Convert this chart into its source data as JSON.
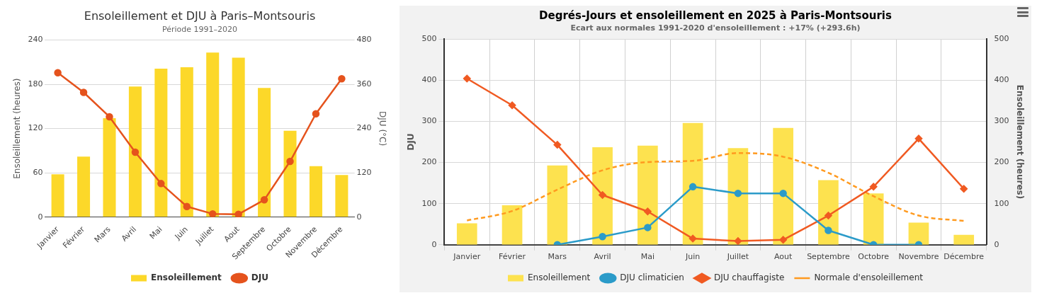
{
  "chart_data": [
    {
      "type": "bar",
      "title": "Ensoleillement et DJU à Paris–Montsouris",
      "subtitle": "Période 1991–2020",
      "ylabel": "Ensoleillement (heures)",
      "y2label": "DJU (°C)",
      "categories": [
        "Janvier",
        "Février",
        "Mars",
        "Avril",
        "Mai",
        "Juin",
        "Juillet",
        "Aout",
        "Septembre",
        "Octobre",
        "Novembre",
        "Décembre"
      ],
      "series": [
        {
          "name": "Ensoleillement",
          "color": "#fcd829",
          "values": [
            58,
            82,
            134,
            177,
            201,
            203,
            223,
            216,
            175,
            117,
            69,
            57
          ]
        },
        {
          "name": "DJU",
          "type": "line",
          "axis": "y2",
          "color": "#e5531d",
          "values": [
            391,
            338,
            272,
            176,
            91,
            29,
            9,
            8,
            47,
            151,
            280,
            375
          ]
        }
      ],
      "ylim": [
        0,
        240
      ],
      "yticks": [
        0,
        60,
        120,
        180,
        240
      ],
      "y2lim": [
        0,
        480
      ],
      "y2ticks": [
        0,
        120,
        240,
        360,
        480
      ],
      "grid": "y",
      "legend": "bottom",
      "marker": "circle"
    },
    {
      "type": "bar",
      "title": "Degrés-Jours et ensoleillement en 2025 à Paris-Montsouris",
      "subtitle": "Ecart aux normales 1991-2020 d'ensoleillement : +17% (+293.6h)",
      "ylabel": "DJU",
      "y2label": "Ensoleillement (heures)",
      "categories": [
        "Janvier",
        "Février",
        "Mars",
        "Avril",
        "Mai",
        "Juin",
        "Juillet",
        "Aout",
        "Septembre",
        "Octobre",
        "Novembre",
        "Décembre"
      ],
      "series": [
        {
          "name": "Ensoleillement",
          "axis": "y2",
          "color": "#fde24f",
          "values": [
            52,
            96,
            193,
            237,
            241,
            296,
            235,
            284,
            157,
            125,
            54,
            24
          ]
        },
        {
          "name": "DJU climaticien",
          "type": "line",
          "color": "#2b9bc9",
          "marker": "circle",
          "values": [
            null,
            null,
            0,
            20,
            42,
            141,
            125,
            125,
            35,
            0,
            0,
            null
          ]
        },
        {
          "name": "DJU chauffagiste",
          "type": "line",
          "color": "#f05a22",
          "marker": "diamond",
          "values": [
            404,
            339,
            243,
            121,
            81,
            15,
            9,
            12,
            71,
            141,
            258,
            136
          ]
        },
        {
          "name": "Normale d'ensoleillement",
          "type": "line",
          "axis": "y2",
          "color": "#ff9a1f",
          "marker": "none",
          "line_style": "dashed",
          "values": [
            59,
            82,
            134,
            181,
            201,
            204,
            223,
            214,
            175,
            118,
            71,
            58
          ]
        }
      ],
      "ylim": [
        0,
        500
      ],
      "yticks": [
        0,
        100,
        200,
        300,
        400,
        500
      ],
      "y2lim": [
        0,
        500
      ],
      "y2ticks": [
        0,
        100,
        200,
        300,
        400,
        500
      ],
      "grid": true,
      "legend": "bottom"
    }
  ]
}
